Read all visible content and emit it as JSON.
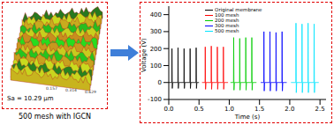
{
  "chart_data": {
    "type": "line",
    "x_label": "Time (s)",
    "y_label": "Voltage (V)",
    "xlim": [
      0,
      2.6
    ],
    "xticks": [
      {
        "value": 0,
        "label": "0.0"
      },
      {
        "value": 0.5,
        "label": "0.5"
      },
      {
        "value": 1,
        "label": "1.0"
      },
      {
        "value": 1.5,
        "label": "1.5"
      },
      {
        "value": 2,
        "label": "2.0"
      },
      {
        "value": 2.5,
        "label": "2.5"
      }
    ],
    "ylim": [
      -100,
      450
    ],
    "yticks": [
      -100,
      0,
      100,
      200,
      300,
      400
    ],
    "grid": false,
    "legend": "top",
    "series": [
      {
        "name": "Original membrane",
        "color": "#000000",
        "x": [
          0,
          0.05,
          0.053,
          0.058,
          0.065,
          0.15,
          0.153,
          0.158,
          0.165,
          0.25,
          0.253,
          0.258,
          0.265,
          0.35,
          0.353,
          0.358,
          0.365,
          0.45,
          0.453,
          0.458,
          0.465,
          0.5
        ],
        "values": [
          0,
          0,
          200,
          -35,
          0,
          0,
          205,
          -35,
          0,
          0,
          200,
          -35,
          0,
          0,
          200,
          -35,
          0,
          0,
          205,
          -35,
          0,
          0
        ]
      },
      {
        "name": "100 mesh",
        "color": "#ff0000",
        "x": [
          0.55,
          0.6,
          0.603,
          0.608,
          0.615,
          0.7,
          0.703,
          0.708,
          0.715,
          0.8,
          0.803,
          0.808,
          0.815,
          0.9,
          0.903,
          0.908,
          0.915,
          0.98
        ],
        "values": [
          0,
          0,
          210,
          -40,
          0,
          0,
          215,
          -40,
          0,
          0,
          210,
          -40,
          0,
          0,
          210,
          -40,
          0,
          0
        ]
      },
      {
        "name": "200 mesh",
        "color": "#00cc00",
        "x": [
          1.02,
          1.07,
          1.073,
          1.078,
          1.085,
          1.17,
          1.173,
          1.178,
          1.185,
          1.27,
          1.273,
          1.278,
          1.285,
          1.37,
          1.373,
          1.378,
          1.385,
          1.45
        ],
        "values": [
          0,
          0,
          265,
          -45,
          0,
          0,
          260,
          -45,
          0,
          0,
          265,
          -45,
          0,
          0,
          265,
          -45,
          0,
          0
        ]
      },
      {
        "name": "300 mesh",
        "color": "#0000ff",
        "x": [
          1.52,
          1.57,
          1.573,
          1.578,
          1.585,
          1.67,
          1.673,
          1.678,
          1.685,
          1.77,
          1.773,
          1.778,
          1.785,
          1.87,
          1.873,
          1.878,
          1.885,
          1.95
        ],
        "values": [
          0,
          0,
          300,
          -50,
          0,
          0,
          300,
          -50,
          0,
          0,
          295,
          -50,
          0,
          0,
          300,
          -50,
          0,
          0
        ]
      },
      {
        "name": "500 mesh",
        "color": "#00e5ff",
        "x": [
          2.02,
          2.1,
          2.103,
          2.108,
          2.115,
          2.2,
          2.203,
          2.208,
          2.215,
          2.3,
          2.303,
          2.308,
          2.315,
          2.4,
          2.403,
          2.408,
          2.415,
          2.48
        ],
        "values": [
          0,
          0,
          350,
          -60,
          0,
          0,
          345,
          -60,
          0,
          0,
          350,
          -60,
          0,
          0,
          345,
          -60,
          0,
          0
        ]
      }
    ]
  },
  "surface_panel": {
    "annotation": "Sa = 10.29 μm",
    "caption": "500 mesh with IGCN",
    "axis_labels": [
      "0.157",
      "0.314",
      "0.629"
    ]
  }
}
